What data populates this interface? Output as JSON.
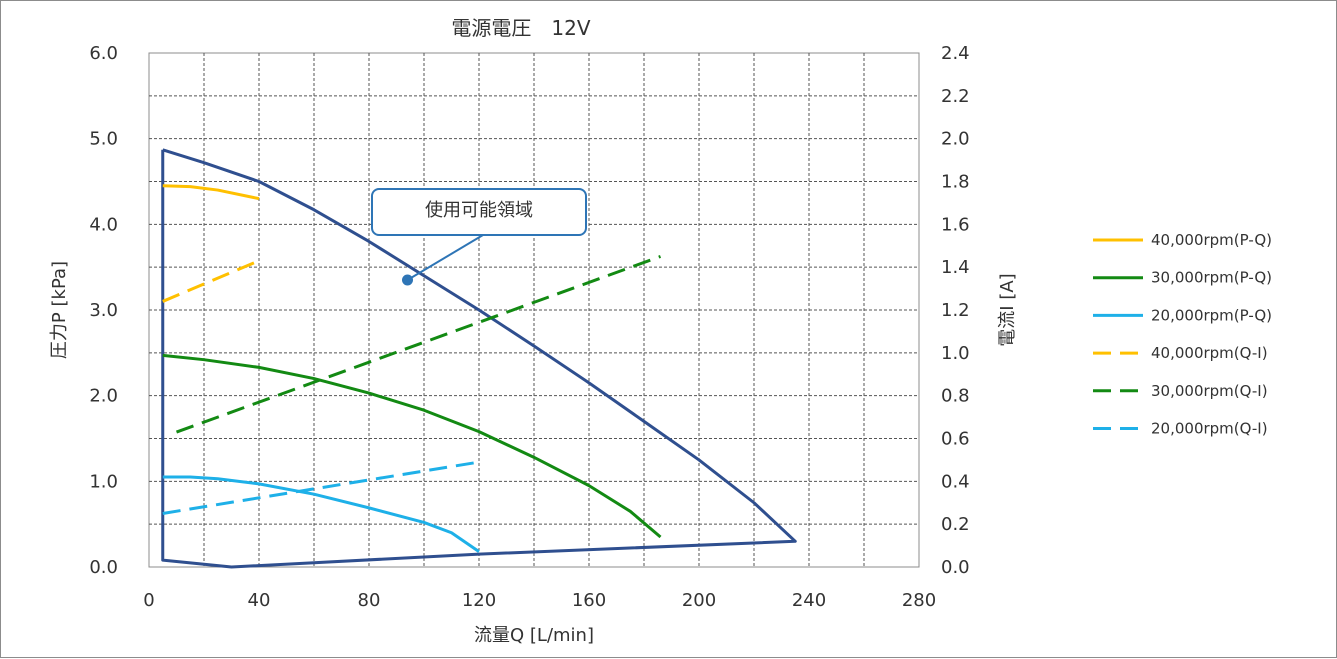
{
  "chart_data": {
    "type": "line",
    "title": "電源電圧　12V",
    "xlabel": "流量Q [L/min]",
    "ylabel": "圧力P [kPa]",
    "y2label": "電流I [A]",
    "xlim": [
      0,
      280
    ],
    "ylim": [
      0,
      6.0
    ],
    "y2lim": [
      0,
      2.4
    ],
    "xticks": [
      0,
      40,
      80,
      120,
      160,
      200,
      240,
      280
    ],
    "yticks": [
      "0.0",
      "1.0",
      "2.0",
      "3.0",
      "4.0",
      "5.0",
      "6.0"
    ],
    "y2ticks": [
      "0.0",
      "0.2",
      "0.4",
      "0.6",
      "0.8",
      "1.0",
      "1.2",
      "1.4",
      "1.6",
      "1.8",
      "2.0",
      "2.2",
      "2.4"
    ],
    "grid": true,
    "legend_position": "right",
    "annotation": {
      "text": "使用可能領域",
      "point": [
        94,
        3.35
      ]
    },
    "usable_region": {
      "axis": "left",
      "points": [
        [
          5,
          4.87
        ],
        [
          20,
          4.72
        ],
        [
          40,
          4.5
        ],
        [
          60,
          4.17
        ],
        [
          80,
          3.8
        ],
        [
          100,
          3.4
        ],
        [
          120,
          3.0
        ],
        [
          140,
          2.58
        ],
        [
          160,
          2.15
        ],
        [
          180,
          1.7
        ],
        [
          200,
          1.25
        ],
        [
          220,
          0.75
        ],
        [
          235,
          0.3
        ],
        [
          120,
          0.15
        ],
        [
          60,
          0.05
        ],
        [
          30,
          0.0
        ],
        [
          5,
          0.08
        ],
        [
          5,
          4.87
        ]
      ],
      "color": "#2f4f8f"
    },
    "series": [
      {
        "name": "40,000rpm(P-Q)",
        "axis": "left",
        "style": "solid",
        "color": "#ffc000",
        "x": [
          5,
          15,
          25,
          40
        ],
        "y": [
          4.45,
          4.44,
          4.4,
          4.3
        ]
      },
      {
        "name": "30,000rpm(P-Q)",
        "axis": "left",
        "style": "solid",
        "color": "#138a13",
        "x": [
          5,
          20,
          40,
          60,
          80,
          100,
          120,
          140,
          160,
          175,
          186
        ],
        "y": [
          2.47,
          2.42,
          2.33,
          2.2,
          2.03,
          1.83,
          1.58,
          1.28,
          0.95,
          0.65,
          0.35
        ]
      },
      {
        "name": "20,000rpm(P-Q)",
        "axis": "left",
        "style": "solid",
        "color": "#1eb0e8",
        "x": [
          5,
          15,
          25,
          40,
          60,
          80,
          100,
          110,
          120
        ],
        "y": [
          1.05,
          1.05,
          1.03,
          0.97,
          0.85,
          0.69,
          0.52,
          0.4,
          0.18
        ]
      },
      {
        "name": "40,000rpm(Q-I)",
        "axis": "right",
        "style": "dashed",
        "color": "#ffc000",
        "x": [
          5,
          40
        ],
        "y": [
          1.24,
          1.43
        ]
      },
      {
        "name": "30,000rpm(Q-I)",
        "axis": "right",
        "style": "dashed",
        "color": "#138a13",
        "x": [
          10,
          186
        ],
        "y": [
          0.63,
          1.45
        ]
      },
      {
        "name": "20,000rpm(Q-I)",
        "axis": "right",
        "style": "dashed",
        "color": "#1eb0e8",
        "x": [
          5,
          120
        ],
        "y": [
          0.25,
          0.49
        ]
      }
    ]
  }
}
